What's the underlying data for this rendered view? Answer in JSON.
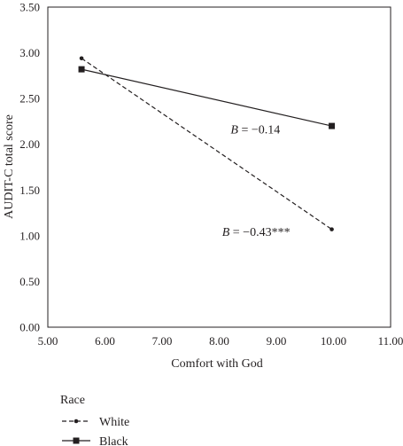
{
  "chart_data": {
    "type": "line",
    "xlabel": "Comfort with God",
    "ylabel": "AUDIT-C total score",
    "xlim": [
      5.0,
      11.0
    ],
    "ylim": [
      0.0,
      3.5
    ],
    "xticks": [
      "5.00",
      "6.00",
      "7.00",
      "8.00",
      "9.00",
      "10.00",
      "11.00"
    ],
    "yticks": [
      "0.00",
      "0.50",
      "1.00",
      "1.50",
      "2.00",
      "2.50",
      "3.00",
      "3.50"
    ],
    "grid": false,
    "legend": {
      "title": "Race",
      "position": "bottom-left"
    },
    "series": [
      {
        "name": "White",
        "style": "dashed",
        "marker": "circle",
        "color": "#231f20",
        "x": [
          5.59,
          9.97
        ],
        "y": [
          2.94,
          1.07
        ]
      },
      {
        "name": "Black",
        "style": "solid",
        "marker": "square",
        "color": "#231f20",
        "x": [
          5.59,
          9.97
        ],
        "y": [
          2.82,
          2.2
        ]
      }
    ],
    "annotations": [
      {
        "series": "Black",
        "prefix": "B",
        "text": " = −0.14",
        "x": 8.2,
        "y": 2.12
      },
      {
        "series": "White",
        "prefix": "B",
        "text": " = −0.43***",
        "x": 8.05,
        "y": 1.0
      }
    ]
  }
}
